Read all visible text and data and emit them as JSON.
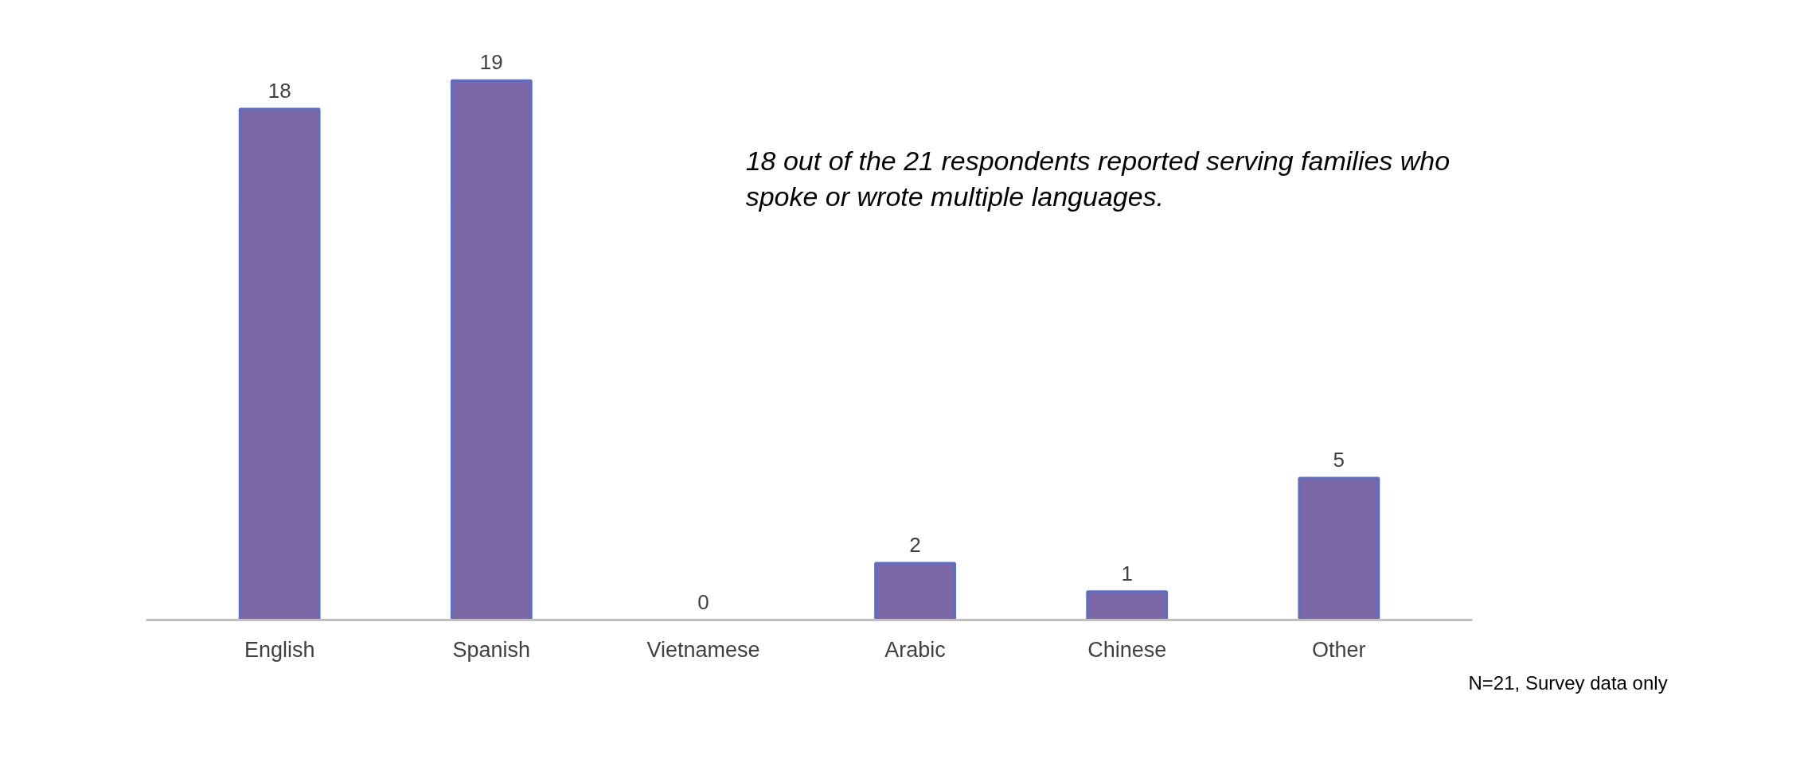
{
  "chart_data": {
    "type": "bar",
    "categories": [
      "English",
      "Spanish",
      "Vietnamese",
      "Arabic",
      "Chinese",
      "Other"
    ],
    "values": [
      18,
      19,
      0,
      2,
      1,
      5
    ],
    "color": "#7b67a6",
    "data_labels": true,
    "annotations": [
      "18 out of the 21 respondents reported serving families who spoke or wrote multiple languages.",
      "N=21, Survey data only"
    ]
  }
}
